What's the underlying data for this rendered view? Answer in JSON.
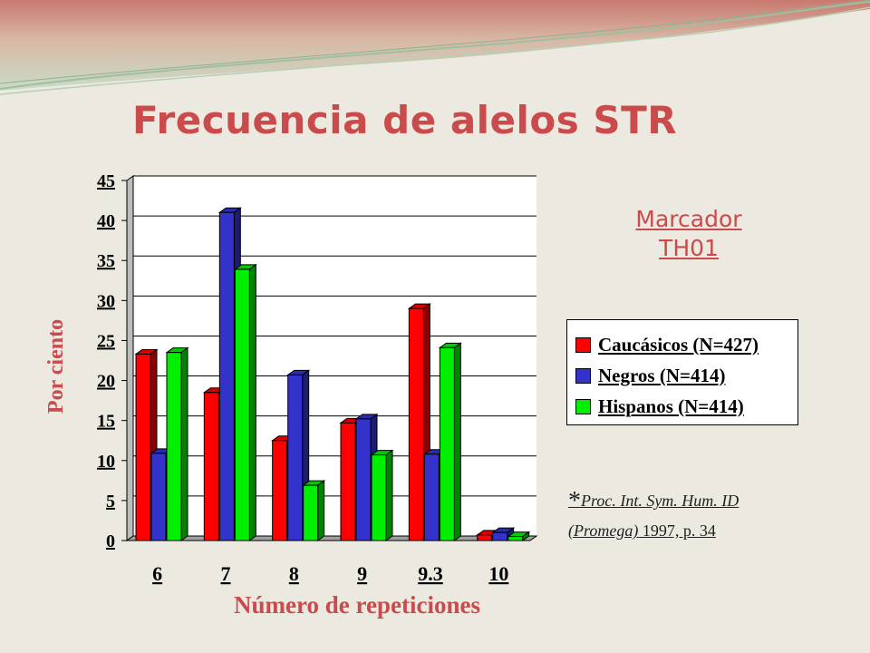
{
  "slide": {
    "title": "Frecuencia de alelos STR",
    "marker_line1": "Marcador",
    "marker_line2": "TH01",
    "source_asterisk": "*",
    "source_line1": "Proc. Int. Sym. Hum. ID",
    "source_line2_italic": "(Promega)",
    "source_line2_rest": " 1997, p. 34",
    "colors": {
      "title": "#c94b4b",
      "background": "#ece9e1"
    }
  },
  "chart_data": {
    "type": "bar",
    "title": "",
    "xlabel": "Número de repeticiones",
    "ylabel": "Por ciento",
    "categories": [
      "6",
      "7",
      "8",
      "9",
      "9.3",
      "10"
    ],
    "ylim": [
      0,
      45
    ],
    "yticks": [
      "0",
      "5",
      "10",
      "15",
      "20",
      "25",
      "30",
      "35",
      "40",
      "45"
    ],
    "grid": true,
    "legend_position": "right",
    "series": [
      {
        "name": "Caucásicos (N=427)",
        "color": "#ff0000",
        "values": [
          23.3,
          18.5,
          12.5,
          14.7,
          29.0,
          0.7
        ]
      },
      {
        "name": "Negros (N=414)",
        "color": "#3333cc",
        "values": [
          10.9,
          41.0,
          20.7,
          15.2,
          10.8,
          1.0
        ]
      },
      {
        "name": "Hispanos (N=414)",
        "color": "#00ee00",
        "values": [
          23.5,
          33.9,
          6.9,
          10.7,
          24.1,
          0.5
        ]
      }
    ]
  }
}
